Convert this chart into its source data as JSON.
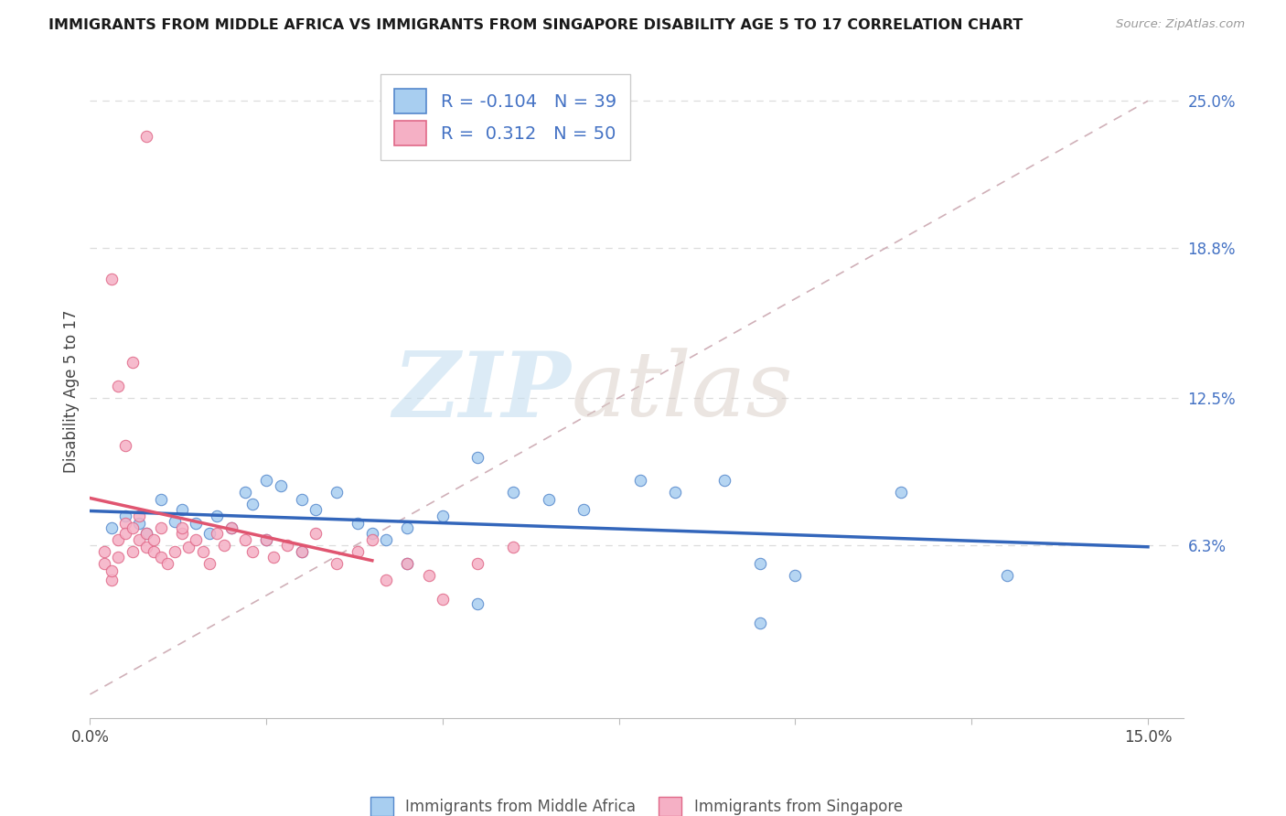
{
  "title": "IMMIGRANTS FROM MIDDLE AFRICA VS IMMIGRANTS FROM SINGAPORE DISABILITY AGE 5 TO 17 CORRELATION CHART",
  "source": "Source: ZipAtlas.com",
  "legend_blue": "Immigrants from Middle Africa",
  "legend_pink": "Immigrants from Singapore",
  "ylabel": "Disability Age 5 to 17",
  "xlim": [
    0.0,
    0.15
  ],
  "ylim": [
    -0.01,
    0.265
  ],
  "r_blue": -0.104,
  "n_blue": 39,
  "r_pink": 0.312,
  "n_pink": 50,
  "color_blue_fill": "#A8CEF0",
  "color_blue_edge": "#5588CC",
  "color_pink_fill": "#F5B0C5",
  "color_pink_edge": "#E06888",
  "color_blue_line": "#3366BB",
  "color_pink_line": "#E05570",
  "color_diag_line": "#C8C8C8",
  "color_grid": "#DCDCDC",
  "ytick_vals": [
    0.063,
    0.125,
    0.188,
    0.25
  ],
  "ytick_labels": [
    "6.3%",
    "12.5%",
    "18.8%",
    "25.0%"
  ],
  "blue_x": [
    0.003,
    0.005,
    0.007,
    0.008,
    0.01,
    0.012,
    0.013,
    0.015,
    0.017,
    0.018,
    0.02,
    0.022,
    0.023,
    0.025,
    0.027,
    0.03,
    0.032,
    0.035,
    0.038,
    0.04,
    0.042,
    0.045,
    0.05,
    0.055,
    0.06,
    0.065,
    0.07,
    0.078,
    0.083,
    0.09,
    0.095,
    0.1,
    0.115,
    0.13,
    0.025,
    0.03,
    0.045,
    0.055,
    0.095
  ],
  "blue_y": [
    0.07,
    0.075,
    0.072,
    0.068,
    0.082,
    0.073,
    0.078,
    0.072,
    0.068,
    0.075,
    0.07,
    0.085,
    0.08,
    0.09,
    0.088,
    0.082,
    0.078,
    0.085,
    0.072,
    0.068,
    0.065,
    0.07,
    0.075,
    0.1,
    0.085,
    0.082,
    0.078,
    0.09,
    0.085,
    0.09,
    0.055,
    0.05,
    0.085,
    0.05,
    0.065,
    0.06,
    0.055,
    0.038,
    0.03
  ],
  "pink_x": [
    0.002,
    0.002,
    0.003,
    0.003,
    0.004,
    0.004,
    0.005,
    0.005,
    0.006,
    0.006,
    0.007,
    0.007,
    0.008,
    0.008,
    0.009,
    0.009,
    0.01,
    0.01,
    0.011,
    0.012,
    0.013,
    0.013,
    0.014,
    0.015,
    0.016,
    0.017,
    0.018,
    0.019,
    0.02,
    0.022,
    0.023,
    0.025,
    0.026,
    0.028,
    0.03,
    0.032,
    0.035,
    0.038,
    0.04,
    0.042,
    0.045,
    0.048,
    0.05,
    0.055,
    0.06,
    0.004,
    0.006,
    0.008,
    0.003,
    0.005
  ],
  "pink_y": [
    0.055,
    0.06,
    0.048,
    0.052,
    0.058,
    0.065,
    0.072,
    0.068,
    0.06,
    0.07,
    0.065,
    0.075,
    0.062,
    0.068,
    0.06,
    0.065,
    0.07,
    0.058,
    0.055,
    0.06,
    0.068,
    0.07,
    0.062,
    0.065,
    0.06,
    0.055,
    0.068,
    0.063,
    0.07,
    0.065,
    0.06,
    0.065,
    0.058,
    0.063,
    0.06,
    0.068,
    0.055,
    0.06,
    0.065,
    0.048,
    0.055,
    0.05,
    0.04,
    0.055,
    0.062,
    0.13,
    0.14,
    0.235,
    0.175,
    0.105
  ]
}
